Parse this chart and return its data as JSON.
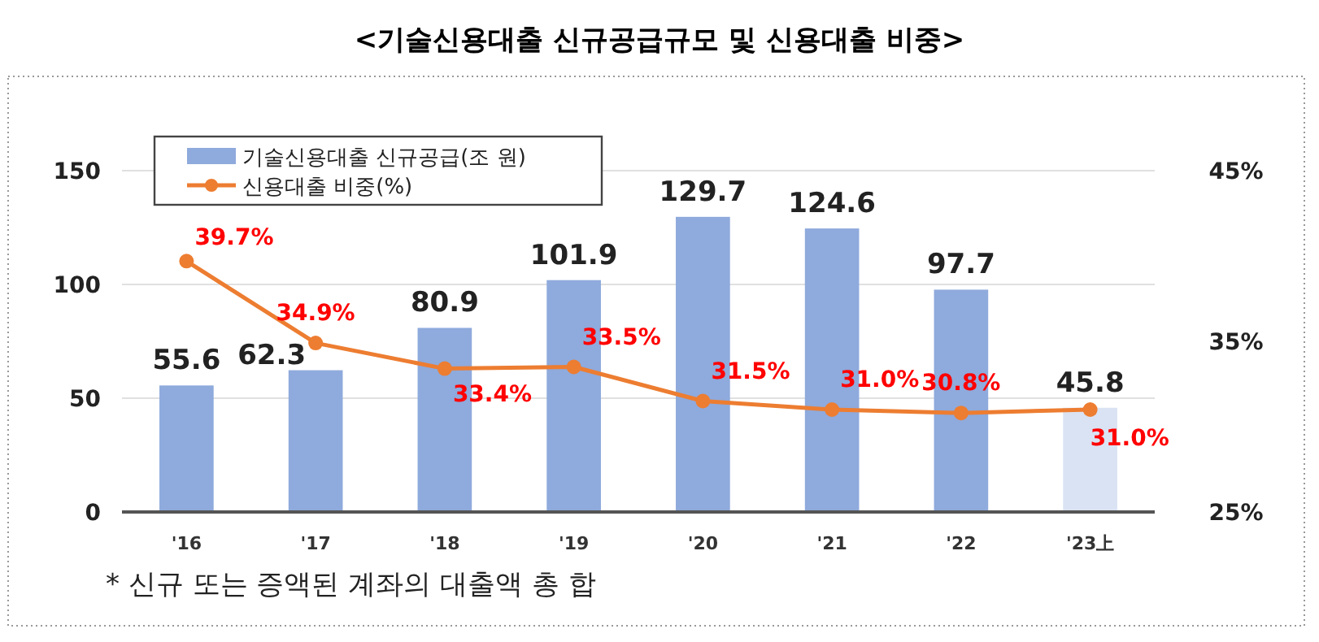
{
  "chart_data": {
    "type": "bar",
    "title": "<기술신용대출 신규공급규모 및 신용대출 비중>",
    "categories": [
      "'16",
      "'17",
      "'18",
      "'19",
      "'20",
      "'21",
      "'22",
      "'23上"
    ],
    "series": [
      {
        "name": "기술신용대출 신규공급(조 원)",
        "color": "#8faadc",
        "colors": [
          "#8faadc",
          "#8faadc",
          "#8faadc",
          "#8faadc",
          "#8faadc",
          "#8faadc",
          "#8faadc",
          "#dae3f3"
        ],
        "values": [
          55.6,
          62.3,
          80.9,
          101.9,
          129.7,
          124.6,
          97.7,
          45.8
        ],
        "value_labels": [
          "55.6",
          "62.3",
          "80.9",
          "101.9",
          "129.7",
          "124.6",
          "97.7",
          "45.8"
        ]
      },
      {
        "name": "신용대출 비중(%)",
        "type": "line",
        "axis": "y2",
        "color": "#ed7d31",
        "marker": "circle",
        "values": [
          39.7,
          34.9,
          33.4,
          33.5,
          31.5,
          31.0,
          30.8,
          31.0
        ],
        "value_labels": [
          "39.7%",
          "34.9%",
          "33.4%",
          "33.5%",
          "31.5%",
          "31.0%",
          "30.8%",
          "31.0%"
        ]
      }
    ],
    "ylim": [
      0,
      150
    ],
    "yticks": [
      0,
      50,
      100,
      150
    ],
    "y2lim": [
      25,
      45
    ],
    "y2ticks": [
      {
        "value": 25,
        "label": "25%"
      },
      {
        "value": 35,
        "label": "35%"
      },
      {
        "value": 45,
        "label": "45%"
      }
    ],
    "grid": "y",
    "legend": "top left",
    "annotations": [
      "* 신규 또는 증액된 계좌의 대출액 총 합"
    ]
  }
}
